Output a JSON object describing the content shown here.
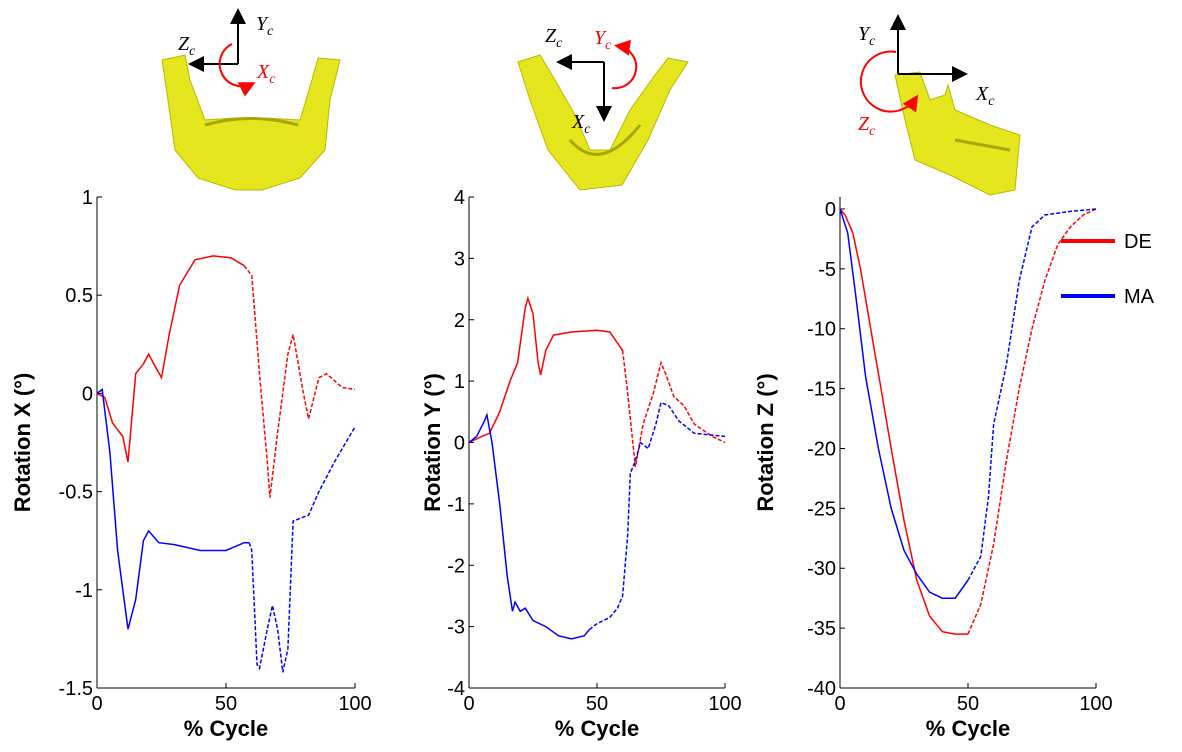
{
  "chart_data": [
    {
      "type": "line",
      "xlabel": "% Cycle",
      "ylabel": "Rotation X (°)",
      "xlim": [
        0,
        100
      ],
      "xticks": [
        0,
        50,
        100
      ],
      "ylim": [
        -1.5,
        1
      ],
      "yticks": [
        -1.5,
        -1,
        -0.5,
        0,
        0.5,
        1
      ],
      "annotations": [
        {
          "text": "Z",
          "sub": "c"
        },
        {
          "text": "Y",
          "sub": "c"
        },
        {
          "text": "X",
          "sub": "c"
        }
      ],
      "series": [
        {
          "color": "#ff0000",
          "dashed_from": 57,
          "x": [
            0,
            3,
            6,
            10,
            12,
            15,
            18,
            20,
            22,
            25,
            28,
            32,
            38,
            45,
            52,
            57,
            60,
            63,
            66,
            67,
            70,
            74,
            76,
            80,
            82,
            86,
            89,
            95,
            100
          ],
          "values": [
            0,
            -0.02,
            -0.15,
            -0.22,
            -0.35,
            0.1,
            0.15,
            0.2,
            0.15,
            0.08,
            0.3,
            0.55,
            0.68,
            0.7,
            0.69,
            0.65,
            0.6,
            0.1,
            -0.35,
            -0.53,
            -0.2,
            0.2,
            0.3,
            0,
            -0.13,
            0.08,
            0.1,
            0.03,
            0.02
          ]
        },
        {
          "color": "#0000ff",
          "dashed_from": 59,
          "x": [
            0,
            2,
            5,
            8,
            12,
            15,
            18,
            20,
            24,
            30,
            40,
            50,
            57,
            59,
            60,
            62,
            63,
            66,
            68,
            70,
            72,
            74,
            76,
            80,
            82,
            86,
            92,
            100
          ],
          "values": [
            0,
            0.02,
            -0.3,
            -0.8,
            -1.2,
            -1.05,
            -0.75,
            -0.7,
            -0.76,
            -0.77,
            -0.8,
            -0.8,
            -0.76,
            -0.76,
            -0.8,
            -1.38,
            -1.4,
            -1.2,
            -1.08,
            -1.2,
            -1.42,
            -1.3,
            -0.65,
            -0.63,
            -0.62,
            -0.5,
            -0.35,
            -0.17
          ]
        }
      ]
    },
    {
      "type": "line",
      "xlabel": "% Cycle",
      "ylabel": "Rotation Y (°)",
      "xlim": [
        0,
        100
      ],
      "xticks": [
        0,
        50,
        100
      ],
      "ylim": [
        -4,
        4
      ],
      "yticks": [
        -4,
        -3,
        -2,
        -1,
        0,
        1,
        2,
        3,
        4
      ],
      "annotations": [
        {
          "text": "Z",
          "sub": "c"
        },
        {
          "text": "Y",
          "sub": "c"
        },
        {
          "text": "X",
          "sub": "c"
        }
      ],
      "series": [
        {
          "color": "#ff0000",
          "dashed_from": 60,
          "x": [
            0,
            5,
            8,
            12,
            16,
            19,
            22,
            23,
            25,
            27,
            28,
            30,
            33,
            40,
            50,
            55,
            60,
            62,
            64,
            65,
            68,
            72,
            75,
            77,
            80,
            84,
            88,
            95,
            100
          ],
          "values": [
            0,
            0.1,
            0.15,
            0.5,
            1.0,
            1.3,
            2.2,
            2.35,
            2.1,
            1.3,
            1.1,
            1.5,
            1.75,
            1.8,
            1.83,
            1.8,
            1.5,
            0.8,
            0,
            -0.4,
            0.3,
            0.8,
            1.3,
            1.1,
            0.75,
            0.6,
            0.3,
            0.1,
            0
          ]
        },
        {
          "color": "#0000ff",
          "dashed_from": 47,
          "x": [
            0,
            3,
            6,
            7,
            9,
            12,
            15,
            17,
            18,
            20,
            22,
            25,
            30,
            35,
            40,
            45,
            47,
            50,
            55,
            58,
            60,
            62,
            63,
            65,
            67,
            70,
            73,
            75,
            78,
            82,
            88,
            100
          ],
          "values": [
            0,
            0.1,
            0.35,
            0.45,
            0,
            -1.0,
            -2.2,
            -2.75,
            -2.6,
            -2.75,
            -2.7,
            -2.9,
            -3.0,
            -3.15,
            -3.2,
            -3.15,
            -3.05,
            -2.95,
            -2.85,
            -2.7,
            -2.5,
            -1.5,
            -0.5,
            -0.3,
            0,
            -0.1,
            0.3,
            0.65,
            0.6,
            0.35,
            0.15,
            0.1
          ]
        }
      ]
    },
    {
      "type": "line",
      "xlabel": "% Cycle",
      "ylabel": "Rotation Z (°)",
      "xlim": [
        0,
        100
      ],
      "xticks": [
        0,
        50,
        100
      ],
      "ylim": [
        -40,
        1
      ],
      "yticks": [
        -40,
        -35,
        -30,
        -25,
        -20,
        -15,
        -10,
        -5,
        0
      ],
      "legend": "upper right",
      "annotations": [
        {
          "text": "Y",
          "sub": "c"
        },
        {
          "text": "X",
          "sub": "c"
        },
        {
          "text": "Z",
          "sub": "c"
        }
      ],
      "series": [
        {
          "name": "DE",
          "color": "#ff0000",
          "dashed_from": 50,
          "x": [
            0,
            2,
            5,
            8,
            12,
            16,
            20,
            25,
            30,
            35,
            40,
            45,
            50,
            55,
            60,
            65,
            70,
            75,
            80,
            85,
            90,
            95,
            100
          ],
          "values": [
            0,
            -0.5,
            -2,
            -5,
            -10,
            -15,
            -20,
            -26,
            -31,
            -34,
            -35.3,
            -35.5,
            -35.5,
            -33,
            -28,
            -21,
            -15,
            -10,
            -6,
            -3,
            -1.5,
            -0.5,
            0
          ]
        },
        {
          "name": "MA",
          "color": "#0000ff",
          "dashed_from": 50,
          "x": [
            0,
            3,
            6,
            10,
            15,
            20,
            25,
            30,
            35,
            40,
            45,
            50,
            55,
            58,
            60,
            65,
            70,
            75,
            80,
            90,
            100
          ],
          "values": [
            0,
            -2,
            -7,
            -14,
            -20,
            -25,
            -28.5,
            -30.5,
            -32,
            -32.5,
            -32.5,
            -31,
            -29,
            -24,
            -18,
            -13,
            -6,
            -1.5,
            -0.5,
            -0.2,
            0
          ]
        }
      ]
    }
  ]
}
